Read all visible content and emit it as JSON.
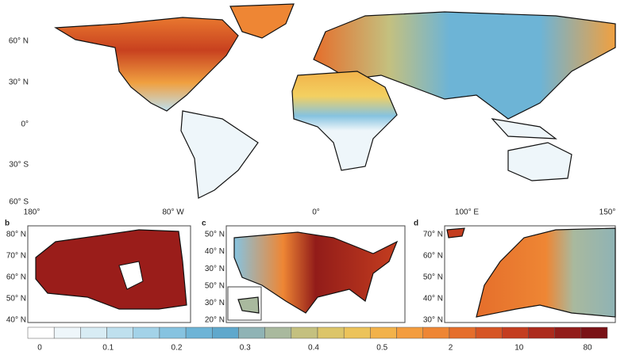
{
  "main_map": {
    "lat_labels": [
      "60° N",
      "30° N",
      "0°",
      "30° S",
      "60° S"
    ],
    "lon_labels": [
      "180°",
      "80° W",
      "0°",
      "100° E",
      "150°"
    ]
  },
  "panels": [
    {
      "letter": "b",
      "lat_labels": [
        "80° N",
        "70° N",
        "60° N",
        "50° N",
        "40° N"
      ]
    },
    {
      "letter": "c",
      "lat_labels": [
        "50° N",
        "40° N",
        "30° N",
        "50° N",
        "30° N",
        "20° N"
      ]
    },
    {
      "letter": "d",
      "lat_labels": [
        "70° N",
        "60° N",
        "50° N",
        "40° N",
        "30° N"
      ]
    }
  ],
  "colorbar": {
    "colors": [
      "#ffffff",
      "#eef6fa",
      "#d8ecf4",
      "#bfe0ee",
      "#a3d2e8",
      "#86c3e0",
      "#6db4d6",
      "#5fa8cc",
      "#8fb3b5",
      "#a9b99e",
      "#c4c07f",
      "#dcc569",
      "#ecc35a",
      "#f2b24a",
      "#f39d3e",
      "#ee8634",
      "#e56e2b",
      "#d65524",
      "#c43d1f",
      "#ac2a1c",
      "#921c19",
      "#7a1216"
    ],
    "ticks": [
      "0",
      "0.1",
      "0.2",
      "0.3",
      "0.4",
      "0.5",
      "2",
      "10",
      "80"
    ]
  }
}
